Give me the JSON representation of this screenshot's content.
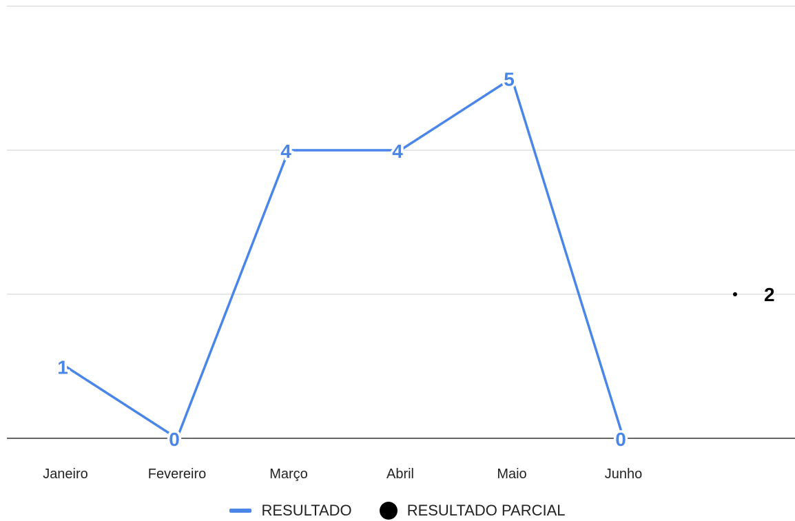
{
  "chart_data": {
    "type": "line",
    "categories": [
      "Janeiro",
      "Fevereiro",
      "Março",
      "Abril",
      "Maio",
      "Junho",
      ""
    ],
    "series": [
      {
        "name": "RESULTADO",
        "color": "#4a86e8",
        "values": [
          1,
          0,
          4,
          4,
          5,
          0,
          null
        ],
        "labels": [
          "1",
          "0",
          "4",
          "4",
          "5",
          "0",
          ""
        ]
      },
      {
        "name": "RESULTADO PARCIAL",
        "color": "#000000",
        "values": [
          null,
          null,
          null,
          null,
          null,
          null,
          2
        ],
        "labels": [
          "",
          "",
          "",
          "",
          "",
          "",
          "2"
        ]
      }
    ],
    "ylim": [
      0,
      6
    ],
    "grid": true,
    "legend": "bottom"
  }
}
